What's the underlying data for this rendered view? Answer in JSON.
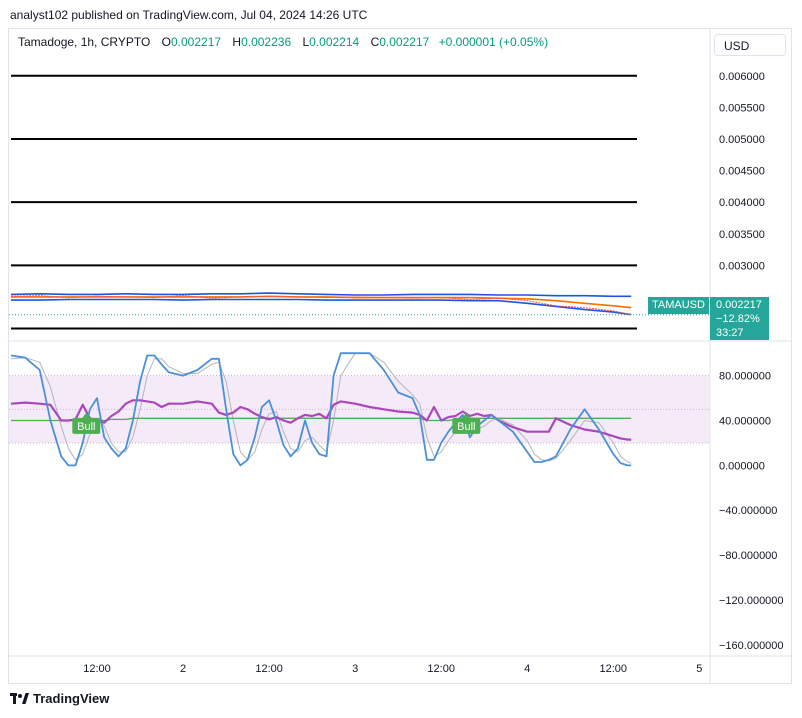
{
  "header": {
    "published": "analyst102 published on TradingView.com, Jul 04, 2024 14:26 UTC"
  },
  "legend": {
    "symbol": "Tamadoge, 1h, CRYPTO",
    "o_label": "O",
    "o_value": "0.002217",
    "h_label": "H",
    "h_value": "0.002236",
    "l_label": "L",
    "l_value": "0.002214",
    "c_label": "C",
    "c_value": "0.002217",
    "change": "+0.000001 (+0.05%)"
  },
  "currency_button": "USD",
  "price_tag": {
    "symbol": "TAMAUSD",
    "price": "0.002217",
    "change": "−12.82%",
    "countdown": "33:27"
  },
  "branding": "TradingView",
  "colors": {
    "up": "#089981",
    "tag": "#26a69a",
    "stoch_k": "#2962ff",
    "stoch_d_bg": "#e1bee7",
    "rsi": "#ab47bc",
    "bb_upper": "#1e53e5",
    "bb_basis": "#ff6d00",
    "bull_label": "#4caf50"
  },
  "chart_data": [
    {
      "type": "line",
      "panel": "price",
      "y_ticks": [
        "0.006000",
        "0.005500",
        "0.005000",
        "0.004500",
        "0.004000",
        "0.003500",
        "0.003000"
      ],
      "ylim": [
        0.00185,
        0.00625
      ],
      "horizontal_levels": [
        0.006,
        0.005,
        0.004,
        0.003,
        0.002
      ],
      "x_ticks": [
        "12:00",
        "2",
        "12:00",
        "3",
        "12:00",
        "4",
        "12:00",
        "5"
      ],
      "x_tick_hours": [
        12,
        24,
        36,
        48,
        60,
        72,
        84,
        96
      ],
      "hours": [
        0,
        4,
        8,
        12,
        16,
        20,
        24,
        28,
        32,
        36,
        40,
        44,
        48,
        52,
        56,
        60,
        64,
        68,
        72,
        76,
        80,
        84,
        86.5
      ],
      "series": [
        {
          "role": "bb_upper",
          "values": [
            0.00254,
            0.00255,
            0.00254,
            0.00254,
            0.00255,
            0.00254,
            0.00254,
            0.00255,
            0.00255,
            0.00256,
            0.00255,
            0.00254,
            0.00253,
            0.00253,
            0.00254,
            0.00254,
            0.00254,
            0.00253,
            0.00253,
            0.00252,
            0.00252,
            0.00251,
            0.00251
          ]
        },
        {
          "role": "bb_basis",
          "values": [
            0.0025,
            0.0025,
            0.0025,
            0.0025,
            0.0025,
            0.0025,
            0.0025,
            0.0025,
            0.0025,
            0.00251,
            0.0025,
            0.0025,
            0.00249,
            0.00249,
            0.00249,
            0.00249,
            0.00249,
            0.00248,
            0.00247,
            0.00244,
            0.0024,
            0.00236,
            0.00233
          ]
        },
        {
          "role": "bb_lower",
          "values": [
            0.00245,
            0.00245,
            0.00246,
            0.00246,
            0.00246,
            0.00246,
            0.00245,
            0.00246,
            0.00246,
            0.00246,
            0.00246,
            0.00245,
            0.00245,
            0.00245,
            0.00245,
            0.00245,
            0.00244,
            0.00244,
            0.0024,
            0.00235,
            0.0023,
            0.00226,
            0.00222
          ]
        },
        {
          "role": "price",
          "values": [
            0.00251,
            0.00252,
            0.00249,
            0.00251,
            0.0025,
            0.00249,
            0.00252,
            0.00248,
            0.0025,
            0.00251,
            0.0025,
            0.00249,
            0.0025,
            0.00249,
            0.00248,
            0.00249,
            0.00246,
            0.00248,
            0.00244,
            0.00236,
            0.00233,
            0.00228,
            0.00222
          ]
        }
      ],
      "last_price": 0.002217
    },
    {
      "type": "line",
      "panel": "stochastic_rsi",
      "y_ticks": [
        "80.000000",
        "40.000000",
        "0.000000",
        "−40.000000",
        "−80.000000",
        "−120.000000",
        "−160.000000"
      ],
      "y_tick_values": [
        80,
        40,
        0,
        -40,
        -80,
        -120,
        -160
      ],
      "ylim": [
        -170,
        110
      ],
      "band": [
        20,
        80
      ],
      "band_mid": 50,
      "hours": [
        0,
        2,
        4,
        5.5,
        7,
        8,
        9,
        10,
        11,
        12,
        13,
        14,
        15,
        16,
        17,
        18,
        19,
        20,
        21,
        22,
        24,
        26,
        28,
        29,
        30,
        31,
        32,
        33,
        34,
        35,
        36,
        37,
        38,
        39,
        40,
        41,
        42,
        43,
        44,
        45,
        46,
        48,
        50,
        52,
        54,
        56,
        57,
        58,
        59,
        60,
        61,
        62,
        63,
        64,
        65,
        66,
        67,
        68,
        70,
        72,
        73,
        74,
        75,
        76,
        78,
        80,
        82,
        84,
        85,
        86,
        86.5
      ],
      "series": [
        {
          "role": "k_blue",
          "values": [
            98,
            96,
            85,
            40,
            8,
            0,
            0,
            20,
            50,
            60,
            25,
            15,
            8,
            15,
            40,
            75,
            98,
            98,
            90,
            83,
            80,
            85,
            95,
            95,
            50,
            10,
            0,
            5,
            25,
            52,
            58,
            40,
            18,
            8,
            15,
            40,
            20,
            10,
            8,
            80,
            100,
            100,
            100,
            85,
            65,
            60,
            45,
            5,
            5,
            20,
            30,
            38,
            45,
            25,
            35,
            40,
            45,
            40,
            30,
            12,
            3,
            3,
            5,
            8,
            32,
            50,
            32,
            10,
            2,
            0,
            0
          ]
        },
        {
          "role": "d_grey",
          "values": [
            95,
            96,
            92,
            70,
            35,
            15,
            5,
            10,
            28,
            42,
            35,
            20,
            12,
            12,
            25,
            50,
            80,
            95,
            95,
            88,
            82,
            82,
            90,
            92,
            75,
            40,
            12,
            5,
            12,
            32,
            46,
            48,
            30,
            15,
            12,
            22,
            25,
            18,
            12,
            40,
            80,
            100,
            100,
            92,
            75,
            63,
            55,
            25,
            8,
            12,
            22,
            30,
            38,
            35,
            32,
            35,
            40,
            42,
            36,
            22,
            10,
            5,
            4,
            6,
            22,
            40,
            38,
            20,
            8,
            3,
            2
          ]
        },
        {
          "role": "rsi_magenta",
          "values": [
            55,
            56,
            55,
            54,
            40,
            40,
            41,
            54,
            42,
            40,
            38,
            44,
            48,
            55,
            58,
            58,
            57,
            56,
            52,
            55,
            55,
            57,
            55,
            47,
            45,
            47,
            52,
            50,
            46,
            43,
            41,
            43,
            40,
            38,
            42,
            45,
            44,
            46,
            42,
            54,
            57,
            55,
            52,
            50,
            48,
            47,
            45,
            40,
            52,
            40,
            43,
            44,
            48,
            44,
            46,
            44,
            45,
            40,
            34,
            30,
            30,
            30,
            30,
            42,
            36,
            32,
            30,
            26,
            24,
            23,
            23
          ]
        },
        {
          "role": "bull_green",
          "values": [
            40,
            40,
            40,
            40,
            40,
            40,
            40,
            40,
            40,
            40,
            40,
            41,
            41,
            41,
            42,
            42,
            42,
            42,
            42,
            42,
            42,
            42,
            42,
            42,
            42,
            42,
            42,
            42,
            42,
            42,
            42,
            42,
            42,
            42,
            42,
            42,
            42,
            42,
            42,
            42,
            42,
            42,
            42,
            42,
            42,
            42,
            42,
            40,
            40,
            40,
            40,
            41,
            42,
            42,
            42,
            42,
            42,
            42,
            42,
            42,
            42,
            42,
            42,
            42,
            42,
            42,
            42,
            42,
            42,
            42,
            42
          ]
        }
      ],
      "annotations": [
        {
          "text": "Bull",
          "hour": 10.5,
          "value": 37
        },
        {
          "text": "Bull",
          "hour": 63.5,
          "value": 37
        }
      ]
    }
  ]
}
